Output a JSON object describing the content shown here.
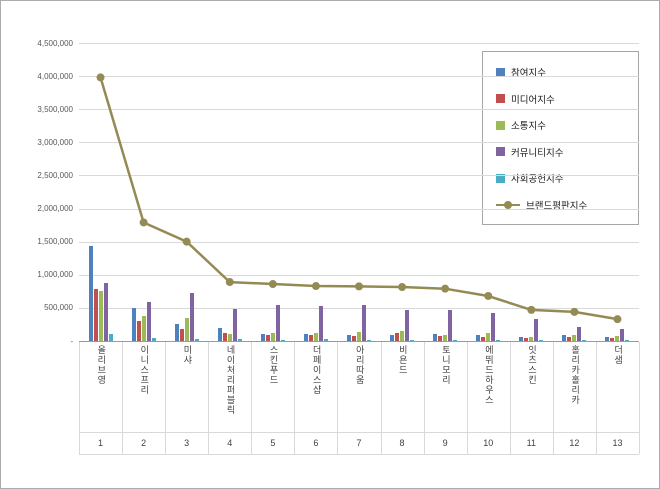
{
  "chart_data": {
    "type": "bar",
    "title": "",
    "xlabel": "",
    "ylabel": "",
    "grid": true,
    "legend_position": "inside-top-right",
    "categories": [
      "올리브영",
      "이니스프리",
      "미샤",
      "네이처리퍼블릭",
      "스킨푸드",
      "더페이스샵",
      "아리따움",
      "비욘드",
      "토니모리",
      "에뛰드하우스",
      "잇츠스킨",
      "홀리카홀리카",
      "더샘"
    ],
    "ranks": [
      "1",
      "2",
      "3",
      "4",
      "5",
      "6",
      "7",
      "8",
      "9",
      "10",
      "11",
      "12",
      "13"
    ],
    "bar_series": [
      {
        "name": "참여지수",
        "color": "#4f81bd",
        "values": [
          1430000,
          505000,
          250000,
          195000,
          105000,
          110000,
          95000,
          85000,
          105000,
          90000,
          55000,
          95000,
          55000
        ]
      },
      {
        "name": "미디어지수",
        "color": "#c0504d",
        "values": [
          790000,
          300000,
          185000,
          120000,
          90000,
          85000,
          75000,
          120000,
          70000,
          65000,
          45000,
          60000,
          40000
        ]
      },
      {
        "name": "소통지수",
        "color": "#9bbb59",
        "values": [
          760000,
          385000,
          345000,
          105000,
          125000,
          120000,
          130000,
          145000,
          90000,
          120000,
          65000,
          85000,
          70000
        ]
      },
      {
        "name": "커뮤니티지수",
        "color": "#8064a2",
        "values": [
          880000,
          590000,
          730000,
          480000,
          550000,
          530000,
          540000,
          465000,
          470000,
          430000,
          330000,
          205000,
          185000
        ]
      },
      {
        "name": "사회공헌지수",
        "color": "#4bacc6",
        "values": [
          100000,
          45000,
          30000,
          30000,
          20000,
          25000,
          20000,
          15000,
          20000,
          15000,
          10000,
          10000,
          10000
        ]
      }
    ],
    "line_series": {
      "name": "브랜드평판지수",
      "color": "#948a54",
      "values": [
        3980000,
        1790000,
        1500000,
        890000,
        860000,
        830000,
        825000,
        815000,
        790000,
        680000,
        470000,
        440000,
        330000
      ]
    },
    "y_axis": {
      "min": 0,
      "max": 4500000,
      "step": 500000,
      "tick_labels": [
        "-",
        "500,000",
        "1,000,000",
        "1,500,000",
        "2,000,000",
        "2,500,000",
        "3,000,000",
        "3,500,000",
        "4,000,000",
        "4,500,000"
      ]
    }
  }
}
